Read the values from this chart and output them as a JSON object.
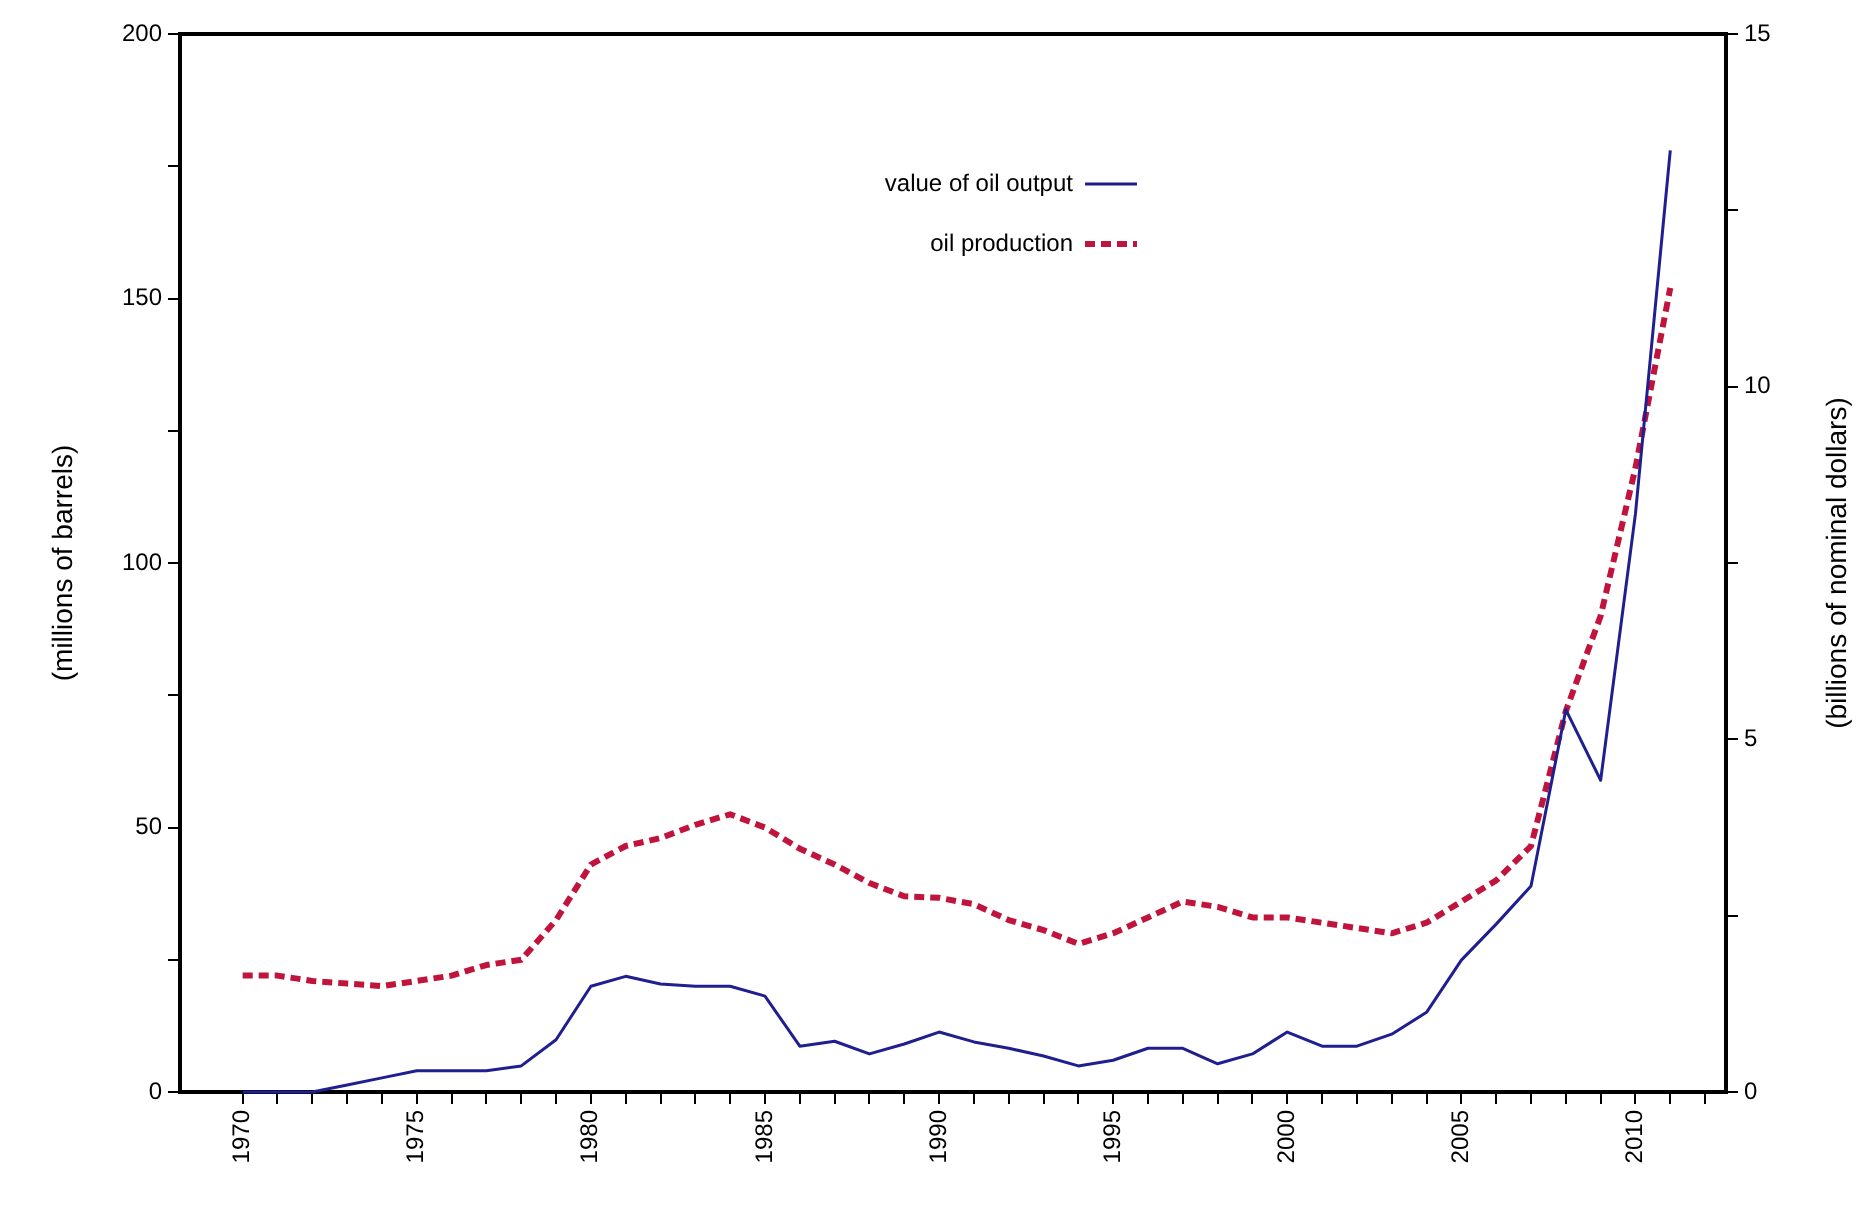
{
  "chart_data": {
    "type": "line",
    "xlabel": null,
    "ylabel": "(millions of barrels)",
    "y2label": "(billions of nominal dollars)",
    "x": [
      1970,
      1971,
      1972,
      1973,
      1974,
      1975,
      1976,
      1977,
      1978,
      1979,
      1980,
      1981,
      1982,
      1983,
      1984,
      1985,
      1986,
      1987,
      1988,
      1989,
      1990,
      1991,
      1992,
      1993,
      1994,
      1995,
      1996,
      1997,
      1998,
      1999,
      2000,
      2001,
      2002,
      2003,
      2004,
      2005,
      2006,
      2007,
      2008,
      2009,
      2010,
      2011
    ],
    "series": [
      {
        "name": "value of oil output",
        "color": "#1f1f8f",
        "axis": "y2",
        "line_style": "solid",
        "values": [
          0,
          0,
          0,
          0.1,
          0.2,
          0.3,
          0.3,
          0.3,
          0.37,
          0.74,
          1.5,
          1.64,
          1.53,
          1.5,
          1.5,
          1.36,
          0.65,
          0.72,
          0.54,
          0.68,
          0.85,
          0.71,
          0.62,
          0.51,
          0.37,
          0.45,
          0.62,
          0.62,
          0.4,
          0.54,
          0.85,
          0.65,
          0.65,
          0.82,
          1.13,
          1.87,
          2.38,
          2.92,
          5.42,
          4.42,
          8.2,
          13.35
        ]
      },
      {
        "name": "oil production",
        "color": "#c0143c",
        "axis": "y",
        "line_style": "dashed",
        "values": [
          22,
          22,
          21,
          20.5,
          20,
          21,
          22,
          24,
          25,
          32.5,
          43,
          46.5,
          48,
          50.5,
          52.5,
          50,
          46,
          43,
          39.5,
          37,
          36.7,
          35.5,
          32.5,
          30.6,
          28,
          30,
          33,
          36,
          35,
          33,
          33,
          32,
          31,
          30,
          32,
          36,
          40,
          46.5,
          72,
          90,
          118,
          152
        ]
      }
    ],
    "xlim": [
      1968.2,
      2012.6
    ],
    "xticks": [
      1970,
      {
        "value": 1971,
        "label": null
      },
      {
        "value": 1972,
        "label": null
      },
      {
        "value": 1973,
        "label": null
      },
      {
        "value": 1974,
        "label": null
      },
      1975,
      {
        "value": 1976,
        "label": null
      },
      {
        "value": 1977,
        "label": null
      },
      {
        "value": 1978,
        "label": null
      },
      {
        "value": 1979,
        "label": null
      },
      1980,
      {
        "value": 1981,
        "label": null
      },
      {
        "value": 1982,
        "label": null
      },
      {
        "value": 1983,
        "label": null
      },
      {
        "value": 1984,
        "label": null
      },
      1985,
      {
        "value": 1986,
        "label": null
      },
      {
        "value": 1987,
        "label": null
      },
      {
        "value": 1988,
        "label": null
      },
      {
        "value": 1989,
        "label": null
      },
      1990,
      {
        "value": 1991,
        "label": null
      },
      {
        "value": 1992,
        "label": null
      },
      {
        "value": 1993,
        "label": null
      },
      {
        "value": 1994,
        "label": null
      },
      1995,
      {
        "value": 1996,
        "label": null
      },
      {
        "value": 1997,
        "label": null
      },
      {
        "value": 1998,
        "label": null
      },
      {
        "value": 1999,
        "label": null
      },
      2000,
      {
        "value": 2001,
        "label": null
      },
      {
        "value": 2002,
        "label": null
      },
      {
        "value": 2003,
        "label": null
      },
      {
        "value": 2004,
        "label": null
      },
      2005,
      {
        "value": 2006,
        "label": null
      },
      {
        "value": 2007,
        "label": null
      },
      {
        "value": 2008,
        "label": null
      },
      {
        "value": 2009,
        "label": null
      },
      2010,
      {
        "value": 2011,
        "label": null
      },
      {
        "value": 2012,
        "label": null
      }
    ],
    "ylim": [
      0,
      200
    ],
    "yticks": [
      0,
      {
        "value": 25,
        "label": null
      },
      50,
      {
        "value": 75,
        "label": null
      },
      100,
      {
        "value": 125,
        "label": null
      },
      150,
      {
        "value": 175,
        "label": null
      },
      200
    ],
    "y2lim": [
      0,
      15
    ],
    "y2ticks": [
      0,
      {
        "value": 2.5,
        "label": null
      },
      5,
      {
        "value": 7.5,
        "label": null
      },
      10,
      {
        "value": 12.5,
        "label": null
      },
      15
    ],
    "grid": false,
    "legend": "top",
    "marker": "none"
  }
}
